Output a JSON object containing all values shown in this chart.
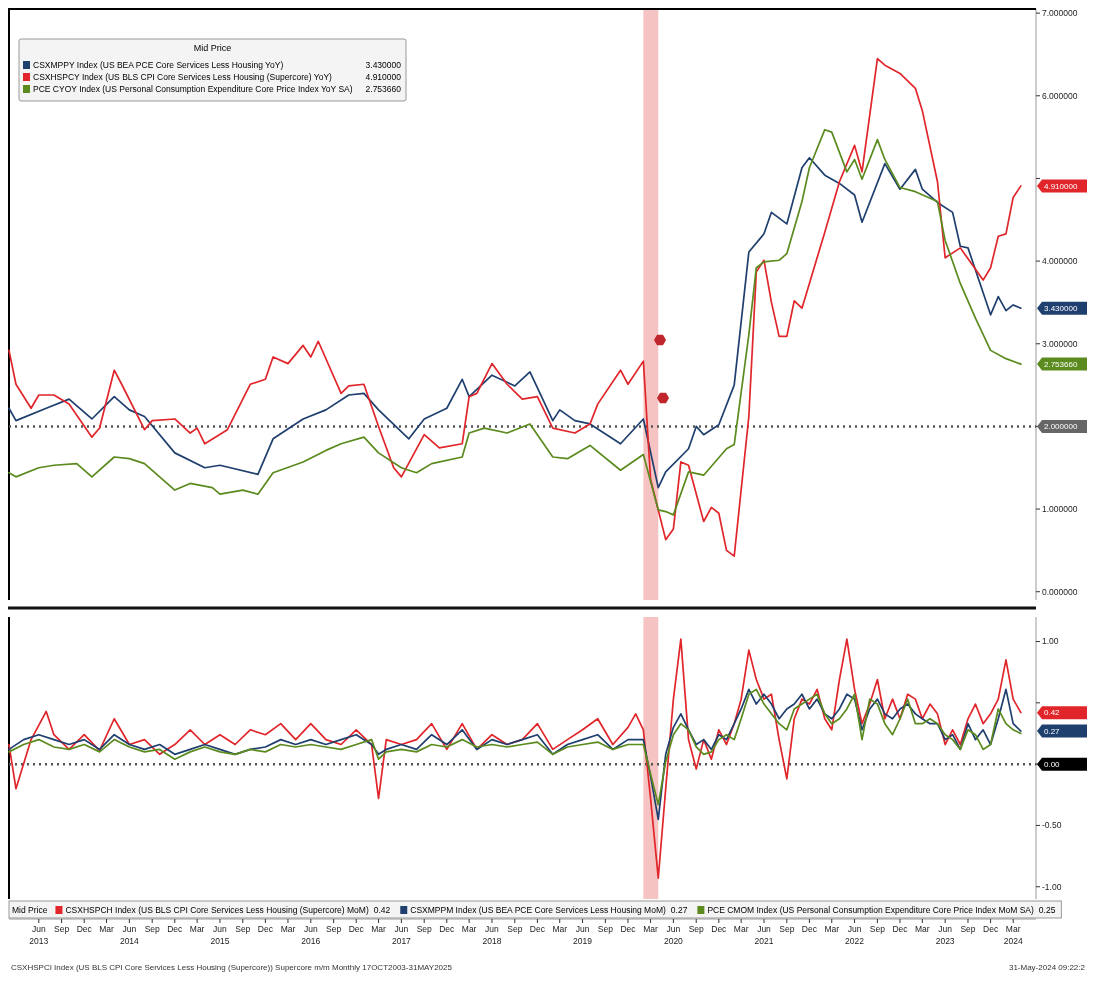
{
  "chart_data": [
    {
      "type": "line",
      "legend_title": "Mid Price",
      "legend": "top left",
      "tick_labels": "y",
      "xlim": [
        "2013-02",
        "2024-06"
      ],
      "ylim": [
        -0.1,
        7.05
      ],
      "yticks": [
        {
          "value": 0,
          "label": "0.000000"
        },
        {
          "value": 1,
          "label": "1.000000"
        },
        {
          "value": 2,
          "label": null
        },
        {
          "value": 3,
          "label": "3.000000"
        },
        {
          "value": 4,
          "label": "4.000000"
        },
        {
          "value": 5,
          "label": null
        },
        {
          "value": 6,
          "label": "6.000000"
        },
        {
          "value": 7,
          "label": "7.000000"
        }
      ],
      "bands": [
        {
          "axis": "x",
          "from": "2020-02",
          "to": "2020-04",
          "color": "#f4b4b4"
        }
      ],
      "ref_lines": [
        {
          "axis": "y",
          "value": 2,
          "label": "2.000000",
          "color": "#555555",
          "line_style": "dotted"
        }
      ],
      "series": [
        {
          "name": "CSXMPPY Index (US BEA PCE Core Services Less Housing YoY)",
          "color": "#1f3f6e",
          "x": [
            "2013-02",
            "2013-03",
            "2013-07",
            "2013-10",
            "2014-01",
            "2014-04",
            "2014-06",
            "2014-08",
            "2014-12",
            "2015-04",
            "2015-06",
            "2015-11",
            "2016-01",
            "2016-05",
            "2016-08",
            "2016-11",
            "2017-01",
            "2017-03",
            "2017-07",
            "2017-09",
            "2017-12",
            "2018-02",
            "2018-03",
            "2018-06",
            "2018-09",
            "2018-11",
            "2019-02",
            "2019-03",
            "2019-05",
            "2019-07",
            "2019-11",
            "2020-02",
            "2020-04",
            "2020-05",
            "2020-08",
            "2020-09",
            "2020-10",
            "2020-12",
            "2021-02",
            "2021-04",
            "2021-06",
            "2021-07",
            "2021-09",
            "2021-11",
            "2021-12",
            "2022-02",
            "2022-04",
            "2022-06",
            "2022-07",
            "2022-10",
            "2022-12",
            "2023-02",
            "2023-03",
            "2023-05",
            "2023-07",
            "2023-08",
            "2023-09",
            "2023-12",
            "2024-01",
            "2024-02",
            "2024-03",
            "2024-04"
          ],
          "values": [
            2.22,
            2.07,
            2.22,
            2.33,
            2.09,
            2.36,
            2.2,
            2.12,
            1.68,
            1.5,
            1.53,
            1.42,
            1.85,
            2.09,
            2.2,
            2.38,
            2.4,
            2.2,
            1.85,
            2.09,
            2.22,
            2.57,
            2.36,
            2.62,
            2.49,
            2.66,
            2.07,
            2.2,
            2.07,
            2.03,
            1.79,
            2.09,
            1.26,
            1.45,
            1.73,
            2.0,
            1.9,
            2.02,
            2.5,
            4.11,
            4.33,
            4.59,
            4.45,
            5.13,
            5.25,
            5.04,
            4.94,
            4.8,
            4.47,
            5.18,
            4.87,
            5.11,
            4.87,
            4.71,
            4.59,
            4.18,
            4.16,
            3.35,
            3.57,
            3.4,
            3.47,
            3.43
          ]
        },
        {
          "name": "CSXHSPCY Index (US BLS CPI Core Services Less Housing (Supercore) YoY)",
          "color": "#e0262b",
          "x": [
            "2013-02",
            "2013-03",
            "2013-05",
            "2013-06",
            "2013-08",
            "2013-10",
            "2014-01",
            "2014-02",
            "2014-04",
            "2014-05",
            "2014-08",
            "2014-09",
            "2014-12",
            "2015-02",
            "2015-03",
            "2015-04",
            "2015-07",
            "2015-10",
            "2015-12",
            "2016-01",
            "2016-03",
            "2016-05",
            "2016-06",
            "2016-07",
            "2016-10",
            "2016-11",
            "2017-01",
            "2017-03",
            "2017-05",
            "2017-06",
            "2017-09",
            "2017-11",
            "2018-02",
            "2018-03",
            "2018-04",
            "2018-06",
            "2018-08",
            "2018-10",
            "2018-12",
            "2019-02",
            "2019-05",
            "2019-07",
            "2019-08",
            "2019-11",
            "2019-12",
            "2020-02",
            "2020-03",
            "2020-05",
            "2020-06",
            "2020-07",
            "2020-08",
            "2020-10",
            "2020-11",
            "2020-12",
            "2021-01",
            "2021-02",
            "2021-04",
            "2021-05",
            "2021-06",
            "2021-07",
            "2021-08",
            "2021-09",
            "2021-10",
            "2021-11",
            "2021-12",
            "2022-02",
            "2022-04",
            "2022-06",
            "2022-07",
            "2022-09",
            "2022-10",
            "2022-12",
            "2023-02",
            "2023-03",
            "2023-05",
            "2023-06",
            "2023-08",
            "2023-11",
            "2023-12",
            "2024-01",
            "2024-02",
            "2024-03",
            "2024-04"
          ],
          "values": [
            2.92,
            2.51,
            2.22,
            2.38,
            2.38,
            2.27,
            1.87,
            1.98,
            2.68,
            2.51,
            1.96,
            2.07,
            2.09,
            1.92,
            1.98,
            1.79,
            1.96,
            2.51,
            2.57,
            2.84,
            2.76,
            2.98,
            2.84,
            3.03,
            2.4,
            2.49,
            2.51,
            2.0,
            1.5,
            1.39,
            1.9,
            1.74,
            1.79,
            2.36,
            2.4,
            2.76,
            2.51,
            2.33,
            2.36,
            1.98,
            1.92,
            2.03,
            2.27,
            2.68,
            2.51,
            2.79,
            1.36,
            0.63,
            0.76,
            1.57,
            1.53,
            0.85,
            1.02,
            0.95,
            0.5,
            0.43,
            2.12,
            3.87,
            4.01,
            3.5,
            3.09,
            3.09,
            3.52,
            3.43,
            3.73,
            4.35,
            4.96,
            5.4,
            5.08,
            6.45,
            6.37,
            6.27,
            6.09,
            5.82,
            4.96,
            4.04,
            4.16,
            3.77,
            3.92,
            4.3,
            4.33,
            4.77,
            4.91
          ]
        },
        {
          "name": "PCE CYOY Index (US Personal Consumption Expenditure Core Price Index YoY SA)",
          "color": "#5b8a1e",
          "x": [
            "2013-02",
            "2013-03",
            "2013-06",
            "2013-08",
            "2013-11",
            "2014-01",
            "2014-04",
            "2014-06",
            "2014-08",
            "2014-12",
            "2015-02",
            "2015-05",
            "2015-06",
            "2015-09",
            "2015-11",
            "2016-01",
            "2016-05",
            "2016-08",
            "2016-10",
            "2017-01",
            "2017-03",
            "2017-06",
            "2017-08",
            "2017-10",
            "2018-02",
            "2018-03",
            "2018-05",
            "2018-08",
            "2018-11",
            "2019-02",
            "2019-04",
            "2019-07",
            "2019-11",
            "2020-02",
            "2020-04",
            "2020-05",
            "2020-06",
            "2020-08",
            "2020-10",
            "2021-01",
            "2021-02",
            "2021-04",
            "2021-05",
            "2021-06",
            "2021-08",
            "2021-09",
            "2021-11",
            "2021-12",
            "2022-02",
            "2022-03",
            "2022-05",
            "2022-06",
            "2022-07",
            "2022-09",
            "2022-10",
            "2022-12",
            "2023-02",
            "2023-05",
            "2023-06",
            "2023-08",
            "2023-10",
            "2023-12",
            "2024-02",
            "2024-04"
          ],
          "values": [
            1.44,
            1.39,
            1.5,
            1.53,
            1.55,
            1.39,
            1.63,
            1.61,
            1.55,
            1.23,
            1.31,
            1.26,
            1.18,
            1.23,
            1.18,
            1.44,
            1.57,
            1.71,
            1.79,
            1.87,
            1.68,
            1.5,
            1.44,
            1.55,
            1.63,
            1.92,
            1.98,
            1.92,
            2.03,
            1.63,
            1.61,
            1.77,
            1.47,
            1.66,
            0.99,
            0.97,
            0.93,
            1.45,
            1.41,
            1.73,
            1.78,
            3.11,
            3.92,
            3.99,
            4.01,
            4.09,
            4.72,
            5.13,
            5.59,
            5.56,
            5.08,
            5.23,
            4.99,
            5.47,
            5.23,
            4.89,
            4.84,
            4.72,
            4.25,
            3.73,
            3.31,
            2.92,
            2.82,
            2.75366
          ]
        }
      ],
      "annotations": [
        {
          "text": "3.430000",
          "x": "2024-04",
          "y": 3.43
        },
        {
          "text": "4.910000",
          "x": "2024-04",
          "y": 4.91
        },
        {
          "text": "2.753660",
          "x": "2024-04",
          "y": 2.75366
        }
      ]
    },
    {
      "type": "line",
      "legend_title": "Mid Price",
      "legend": "bottom",
      "xlim": [
        "2013-02",
        "2024-06"
      ],
      "ylim": [
        -1.1,
        1.2
      ],
      "xticks": [
        {
          "value": "2013-06",
          "label": "Jun\n2013"
        },
        {
          "value": "2013-09",
          "label": "Sep"
        },
        {
          "value": "2013-12",
          "label": "Dec"
        },
        {
          "value": "2014-03",
          "label": "Mar"
        },
        {
          "value": "2014-06",
          "label": "Jun\n2014"
        },
        {
          "value": "2014-09",
          "label": "Sep"
        },
        {
          "value": "2014-12",
          "label": "Dec"
        },
        {
          "value": "2015-03",
          "label": "Mar"
        },
        {
          "value": "2015-06",
          "label": "Jun\n2015"
        },
        {
          "value": "2015-09",
          "label": "Sep"
        },
        {
          "value": "2015-12",
          "label": "Dec"
        },
        {
          "value": "2016-03",
          "label": "Mar"
        },
        {
          "value": "2016-06",
          "label": "Jun\n2016"
        },
        {
          "value": "2016-09",
          "label": "Sep"
        },
        {
          "value": "2016-12",
          "label": "Dec"
        },
        {
          "value": "2017-03",
          "label": "Mar"
        },
        {
          "value": "2017-06",
          "label": "Jun\n2017"
        },
        {
          "value": "2017-09",
          "label": "Sep"
        },
        {
          "value": "2017-12",
          "label": "Dec"
        },
        {
          "value": "2018-03",
          "label": "Mar"
        },
        {
          "value": "2018-06",
          "label": "Jun\n2018"
        },
        {
          "value": "2018-09",
          "label": "Sep"
        },
        {
          "value": "2018-12",
          "label": "Dec"
        },
        {
          "value": "2019-03",
          "label": "Mar"
        },
        {
          "value": "2019-06",
          "label": "Jun\n2019"
        },
        {
          "value": "2019-09",
          "label": "Sep"
        },
        {
          "value": "2019-12",
          "label": "Dec"
        },
        {
          "value": "2020-03",
          "label": "Mar"
        },
        {
          "value": "2020-06",
          "label": "Jun\n2020"
        },
        {
          "value": "2020-09",
          "label": "Sep"
        },
        {
          "value": "2020-12",
          "label": "Dec"
        },
        {
          "value": "2021-03",
          "label": "Mar"
        },
        {
          "value": "2021-06",
          "label": "Jun\n2021"
        },
        {
          "value": "2021-09",
          "label": "Sep"
        },
        {
          "value": "2021-12",
          "label": "Dec"
        },
        {
          "value": "2022-03",
          "label": "Mar"
        },
        {
          "value": "2022-06",
          "label": "Jun\n2022"
        },
        {
          "value": "2022-09",
          "label": "Sep"
        },
        {
          "value": "2022-12",
          "label": "Dec"
        },
        {
          "value": "2023-03",
          "label": "Mar"
        },
        {
          "value": "2023-06",
          "label": "Jun\n2023"
        },
        {
          "value": "2023-09",
          "label": "Sep"
        },
        {
          "value": "2023-12",
          "label": "Dec"
        },
        {
          "value": "2024-03",
          "label": "Mar\n2024"
        }
      ],
      "yticks": [
        {
          "value": -1,
          "label": "-1.00"
        },
        {
          "value": -0.5,
          "label": "-0.50"
        },
        {
          "value": 0,
          "label": null
        },
        {
          "value": 0.5,
          "label": null
        },
        {
          "value": 1,
          "label": "1.00"
        }
      ],
      "bands": [
        {
          "axis": "x",
          "from": "2020-02",
          "to": "2020-04",
          "color": "#f4b4b4"
        }
      ],
      "ref_lines": [
        {
          "axis": "y",
          "value": 0,
          "label": "0.00",
          "color": "#555555",
          "line_style": "dotted"
        }
      ],
      "series": [
        {
          "name": "CSXHSPCH Index (US BLS CPI Core Services Less Housing (Supercore) MoM)",
          "color": "#e0262b",
          "x": [
            "2013-02",
            "2013-03",
            "2013-05",
            "2013-07",
            "2013-08",
            "2013-10",
            "2013-12",
            "2014-02",
            "2014-04",
            "2014-06",
            "2014-08",
            "2014-10",
            "2014-12",
            "2015-02",
            "2015-04",
            "2015-06",
            "2015-08",
            "2015-10",
            "2015-12",
            "2016-02",
            "2016-04",
            "2016-06",
            "2016-08",
            "2016-10",
            "2016-12",
            "2017-02",
            "2017-03",
            "2017-04",
            "2017-06",
            "2017-08",
            "2017-10",
            "2017-12",
            "2018-02",
            "2018-04",
            "2018-06",
            "2018-08",
            "2018-10",
            "2018-12",
            "2019-02",
            "2019-04",
            "2019-06",
            "2019-08",
            "2019-10",
            "2019-12",
            "2020-01",
            "2020-02",
            "2020-03",
            "2020-04",
            "2020-05",
            "2020-06",
            "2020-07",
            "2020-08",
            "2020-09",
            "2020-10",
            "2020-11",
            "2020-12",
            "2021-01",
            "2021-02",
            "2021-03",
            "2021-04",
            "2021-05",
            "2021-06",
            "2021-07",
            "2021-08",
            "2021-09",
            "2021-10",
            "2021-11",
            "2021-12",
            "2022-01",
            "2022-02",
            "2022-03",
            "2022-04",
            "2022-05",
            "2022-06",
            "2022-07",
            "2022-08",
            "2022-09",
            "2022-10",
            "2022-11",
            "2022-12",
            "2023-01",
            "2023-02",
            "2023-03",
            "2023-04",
            "2023-05",
            "2023-06",
            "2023-07",
            "2023-08",
            "2023-09",
            "2023-10",
            "2023-11",
            "2023-12",
            "2024-01",
            "2024-02",
            "2024-03",
            "2024-04"
          ],
          "values": [
            0.16,
            -0.2,
            0.2,
            0.43,
            0.24,
            0.12,
            0.24,
            0.11,
            0.37,
            0.16,
            0.2,
            0.08,
            0.16,
            0.28,
            0.16,
            0.24,
            0.16,
            0.28,
            0.24,
            0.33,
            0.2,
            0.33,
            0.2,
            0.16,
            0.28,
            0.16,
            -0.28,
            0.2,
            0.16,
            0.2,
            0.33,
            0.12,
            0.33,
            0.12,
            0.24,
            0.16,
            0.2,
            0.33,
            0.12,
            0.2,
            0.28,
            0.37,
            0.16,
            0.3,
            0.41,
            0.28,
            -0.28,
            -0.93,
            -0.2,
            0.53,
            1.02,
            0.2,
            -0.04,
            0.2,
            0.04,
            0.28,
            0.16,
            0.33,
            0.53,
            0.93,
            0.69,
            0.53,
            0.57,
            0.2,
            -0.12,
            0.37,
            0.53,
            0.49,
            0.61,
            0.37,
            0.28,
            0.69,
            1.02,
            0.61,
            0.33,
            0.49,
            0.69,
            0.37,
            0.53,
            0.37,
            0.57,
            0.53,
            0.37,
            0.49,
            0.41,
            0.16,
            0.28,
            0.16,
            0.37,
            0.49,
            0.33,
            0.41,
            0.53,
            0.85,
            0.53,
            0.42
          ]
        },
        {
          "name": "CSXMPPM Index (US BEA PCE Core Services Less Housing MoM)",
          "color": "#1f3f6e",
          "x": [
            "2013-02",
            "2013-04",
            "2013-06",
            "2013-08",
            "2013-10",
            "2013-12",
            "2014-02",
            "2014-04",
            "2014-06",
            "2014-08",
            "2014-10",
            "2014-12",
            "2015-02",
            "2015-04",
            "2015-06",
            "2015-08",
            "2015-10",
            "2015-12",
            "2016-02",
            "2016-04",
            "2016-06",
            "2016-08",
            "2016-10",
            "2016-12",
            "2017-02",
            "2017-03",
            "2017-04",
            "2017-06",
            "2017-08",
            "2017-10",
            "2017-12",
            "2018-02",
            "2018-04",
            "2018-06",
            "2018-08",
            "2018-10",
            "2018-12",
            "2019-02",
            "2019-04",
            "2019-06",
            "2019-08",
            "2019-10",
            "2019-12",
            "2020-02",
            "2020-03",
            "2020-04",
            "2020-05",
            "2020-06",
            "2020-07",
            "2020-08",
            "2020-09",
            "2020-10",
            "2020-11",
            "2020-12",
            "2021-01",
            "2021-02",
            "2021-03",
            "2021-04",
            "2021-05",
            "2021-06",
            "2021-07",
            "2021-08",
            "2021-09",
            "2021-10",
            "2021-11",
            "2021-12",
            "2022-01",
            "2022-02",
            "2022-03",
            "2022-04",
            "2022-05",
            "2022-06",
            "2022-07",
            "2022-08",
            "2022-09",
            "2022-10",
            "2022-11",
            "2022-12",
            "2023-01",
            "2023-02",
            "2023-03",
            "2023-04",
            "2023-05",
            "2023-06",
            "2023-07",
            "2023-08",
            "2023-09",
            "2023-10",
            "2023-11",
            "2023-12",
            "2024-01",
            "2024-02",
            "2024-03",
            "2024-04"
          ],
          "values": [
            0.12,
            0.2,
            0.24,
            0.2,
            0.16,
            0.2,
            0.12,
            0.24,
            0.16,
            0.12,
            0.16,
            0.08,
            0.12,
            0.16,
            0.12,
            0.08,
            0.12,
            0.14,
            0.2,
            0.16,
            0.2,
            0.16,
            0.2,
            0.24,
            0.16,
            0.08,
            0.12,
            0.16,
            0.12,
            0.24,
            0.16,
            0.28,
            0.12,
            0.2,
            0.16,
            0.2,
            0.24,
            0.08,
            0.16,
            0.2,
            0.24,
            0.12,
            0.2,
            0.2,
            -0.1,
            -0.45,
            0.08,
            0.3,
            0.41,
            0.28,
            0.16,
            0.2,
            0.12,
            0.24,
            0.2,
            0.33,
            0.45,
            0.61,
            0.49,
            0.57,
            0.49,
            0.37,
            0.45,
            0.49,
            0.57,
            0.45,
            0.53,
            0.41,
            0.37,
            0.45,
            0.57,
            0.53,
            0.28,
            0.45,
            0.53,
            0.41,
            0.37,
            0.45,
            0.49,
            0.41,
            0.37,
            0.33,
            0.33,
            0.2,
            0.24,
            0.12,
            0.33,
            0.2,
            0.28,
            0.16,
            0.37,
            0.61,
            0.33,
            0.27
          ]
        },
        {
          "name": "PCE CMOM Index (US Personal Consumption Expenditure Core Price Index MoM SA)",
          "color": "#5b8a1e",
          "x": [
            "2013-02",
            "2013-04",
            "2013-06",
            "2013-08",
            "2013-10",
            "2013-12",
            "2014-02",
            "2014-04",
            "2014-06",
            "2014-08",
            "2014-10",
            "2014-12",
            "2015-02",
            "2015-04",
            "2015-06",
            "2015-08",
            "2015-10",
            "2015-12",
            "2016-02",
            "2016-04",
            "2016-06",
            "2016-08",
            "2016-10",
            "2016-12",
            "2017-02",
            "2017-03",
            "2017-04",
            "2017-06",
            "2017-08",
            "2017-10",
            "2017-12",
            "2018-02",
            "2018-04",
            "2018-06",
            "2018-08",
            "2018-10",
            "2018-12",
            "2019-02",
            "2019-04",
            "2019-06",
            "2019-08",
            "2019-10",
            "2019-12",
            "2020-02",
            "2020-03",
            "2020-04",
            "2020-05",
            "2020-06",
            "2020-07",
            "2020-08",
            "2020-09",
            "2020-10",
            "2020-11",
            "2020-12",
            "2021-01",
            "2021-02",
            "2021-03",
            "2021-04",
            "2021-05",
            "2021-06",
            "2021-07",
            "2021-08",
            "2021-09",
            "2021-10",
            "2021-11",
            "2021-12",
            "2022-01",
            "2022-02",
            "2022-03",
            "2022-04",
            "2022-05",
            "2022-06",
            "2022-07",
            "2022-08",
            "2022-09",
            "2022-10",
            "2022-11",
            "2022-12",
            "2023-01",
            "2023-02",
            "2023-03",
            "2023-04",
            "2023-05",
            "2023-06",
            "2023-07",
            "2023-08",
            "2023-09",
            "2023-10",
            "2023-11",
            "2023-12",
            "2024-01",
            "2024-02",
            "2024-03",
            "2024-04"
          ],
          "values": [
            0.1,
            0.16,
            0.2,
            0.14,
            0.12,
            0.16,
            0.1,
            0.2,
            0.14,
            0.1,
            0.12,
            0.04,
            0.1,
            0.14,
            0.1,
            0.08,
            0.12,
            0.1,
            0.16,
            0.14,
            0.16,
            0.14,
            0.12,
            0.16,
            0.2,
            0.04,
            0.1,
            0.12,
            0.1,
            0.16,
            0.14,
            0.2,
            0.14,
            0.16,
            0.14,
            0.16,
            0.18,
            0.08,
            0.14,
            0.16,
            0.18,
            0.12,
            0.16,
            0.16,
            -0.08,
            -0.33,
            0.02,
            0.24,
            0.33,
            0.28,
            0.14,
            0.08,
            0.1,
            0.2,
            0.24,
            0.2,
            0.37,
            0.57,
            0.61,
            0.49,
            0.41,
            0.33,
            0.28,
            0.45,
            0.49,
            0.53,
            0.57,
            0.41,
            0.33,
            0.37,
            0.45,
            0.57,
            0.2,
            0.53,
            0.49,
            0.33,
            0.24,
            0.37,
            0.53,
            0.33,
            0.33,
            0.37,
            0.33,
            0.24,
            0.2,
            0.12,
            0.28,
            0.24,
            0.12,
            0.16,
            0.45,
            0.33,
            0.28,
            0.25
          ]
        }
      ],
      "annotations": [
        {
          "text": "0.42",
          "x": "2024-04",
          "y": 0.42
        },
        {
          "text": "0.27",
          "x": "2024-04",
          "y": 0.27
        },
        "0.25",
        "CSXHSPCI Index (US BLS CPI Core Services Less Housing (Supercore)) Supercore m/m Monthly 17OCT2003-31MAY2025",
        "31-May-2024 09:22:2"
      ]
    }
  ]
}
